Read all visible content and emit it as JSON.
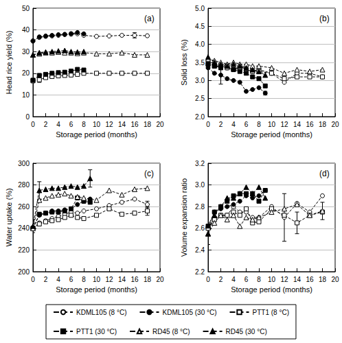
{
  "chart_data": [
    {
      "type": "line",
      "title": "(a)",
      "xlabel": "Storage period (months)",
      "ylabel": "Head rice yield (%)",
      "xlim": [
        0,
        20
      ],
      "xticks": [
        0,
        2,
        4,
        6,
        8,
        10,
        12,
        14,
        16,
        18,
        20
      ],
      "ylim": [
        0,
        50
      ],
      "yticks": [
        0,
        10,
        20,
        30,
        40,
        50
      ],
      "grid": true,
      "legend": "bottom",
      "series": [
        {
          "name": "KDML105 (8 °C)",
          "color": "#000000",
          "marker": "open_circle",
          "line_style": "dashed",
          "x": [
            0,
            1,
            2,
            3,
            4,
            5,
            6,
            7,
            8,
            10,
            12,
            14,
            16,
            18
          ],
          "values": [
            35,
            36.5,
            37,
            37.2,
            37.5,
            37.8,
            38,
            38.2,
            37.5,
            37,
            37.2,
            37.5,
            37.5,
            37.3
          ],
          "errors": [
            null,
            null,
            null,
            null,
            null,
            null,
            null,
            null,
            null,
            null,
            null,
            null,
            1.2,
            null
          ]
        },
        {
          "name": "KDML105 (30 °C)",
          "color": "#000000",
          "marker": "circle",
          "line_style": "dashed",
          "x": [
            0,
            1,
            2,
            3,
            4,
            5,
            6,
            7,
            8
          ],
          "values": [
            34.8,
            36.8,
            37.2,
            37.5,
            37.8,
            38,
            38.3,
            38.8,
            38.2
          ]
        },
        {
          "name": "PTT1 (8 °C)",
          "color": "#000000",
          "marker": "open_square",
          "line_style": "dashed",
          "x": [
            0,
            1,
            2,
            3,
            4,
            5,
            6,
            7,
            8,
            10,
            12,
            14,
            16,
            18
          ],
          "values": [
            16.5,
            17,
            18,
            18.5,
            18.8,
            19,
            19.2,
            19.5,
            20,
            20,
            20,
            20,
            20,
            20
          ],
          "errors": [
            null,
            1.2,
            null,
            null,
            null,
            null,
            null,
            null,
            null,
            null,
            null,
            null,
            null,
            null
          ]
        },
        {
          "name": "PTT1 (30 °C)",
          "color": "#000000",
          "marker": "square",
          "line_style": "dashed",
          "x": [
            0,
            1,
            2,
            3,
            4,
            5,
            6,
            7,
            8
          ],
          "values": [
            16.8,
            19,
            19.5,
            20,
            20.3,
            20.5,
            21,
            21.8,
            21.5
          ]
        },
        {
          "name": "RD45 (8 °C)",
          "color": "#000000",
          "marker": "open_triangle",
          "line_style": "dashed",
          "x": [
            0,
            1,
            2,
            3,
            4,
            5,
            6,
            7,
            8,
            10,
            12,
            14,
            16,
            18
          ],
          "values": [
            28.5,
            29,
            29.5,
            29.5,
            29.8,
            29.5,
            29.5,
            29.2,
            29.5,
            29,
            29,
            29.5,
            28.5,
            28.5
          ]
        },
        {
          "name": "RD45 (30 °C)",
          "color": "#000000",
          "marker": "triangle",
          "line_style": "dashed",
          "x": [
            0,
            1,
            2,
            3,
            4,
            5,
            6,
            7,
            8
          ],
          "values": [
            28.5,
            29.5,
            29.8,
            30,
            30.3,
            30.5,
            30,
            29.8,
            30
          ]
        }
      ]
    },
    {
      "type": "line",
      "title": "(b)",
      "xlabel": "Storage period (months)",
      "ylabel": "Solid loss (%)",
      "xlim": [
        0,
        20
      ],
      "xticks": [
        0,
        2,
        4,
        6,
        8,
        10,
        12,
        14,
        16,
        18,
        20
      ],
      "ylim": [
        2,
        5
      ],
      "yticks": [
        {
          "value": 2,
          "label": "2.0"
        },
        2.5,
        {
          "value": 3,
          "label": "3.0"
        },
        3.5,
        {
          "value": 4,
          "label": "4.0"
        },
        4.5,
        {
          "value": 5,
          "label": "5.0"
        }
      ],
      "grid": true,
      "series": [
        {
          "name": "KDML105 (8 °C)",
          "color": "#000000",
          "marker": "open_circle",
          "line_style": "dashed",
          "x": [
            0,
            1,
            2,
            3,
            4,
            5,
            6,
            7,
            8,
            10,
            12,
            14,
            16,
            18
          ],
          "values": [
            3.55,
            3.45,
            3.4,
            3.35,
            3.3,
            3.4,
            3.3,
            3.25,
            3.3,
            3.2,
            2.95,
            3.2,
            3.2,
            3.1
          ]
        },
        {
          "name": "KDML105 (30 °C)",
          "color": "#000000",
          "marker": "circle",
          "line_style": "dashed",
          "x": [
            0,
            1,
            2,
            3,
            4,
            5,
            6,
            7,
            8,
            9
          ],
          "values": [
            3.35,
            3.2,
            3.15,
            3.05,
            3.0,
            2.95,
            2.7,
            2.75,
            2.8,
            2.65
          ],
          "errors": [
            null,
            null,
            0.25,
            null,
            null,
            null,
            null,
            null,
            null,
            0.05
          ]
        },
        {
          "name": "PTT1 (8 °C)",
          "color": "#000000",
          "marker": "open_square",
          "line_style": "dashed",
          "x": [
            0,
            1,
            2,
            3,
            4,
            5,
            6,
            7,
            8,
            10,
            12,
            14,
            16,
            18
          ],
          "values": [
            3.45,
            3.4,
            3.4,
            3.35,
            3.3,
            3.35,
            3.3,
            3.25,
            3.25,
            3.2,
            3.05,
            3.1,
            3.1,
            3.1
          ]
        },
        {
          "name": "PTT1 (30 °C)",
          "color": "#000000",
          "marker": "square",
          "line_style": "dashed",
          "x": [
            0,
            1,
            2,
            3,
            4,
            5,
            6,
            7,
            8,
            9
          ],
          "values": [
            3.45,
            3.4,
            3.35,
            3.4,
            3.3,
            3.25,
            3.2,
            3.1,
            3.05,
            2.85
          ]
        },
        {
          "name": "RD45 (8 °C)",
          "color": "#000000",
          "marker": "open_triangle",
          "line_style": "dashed",
          "x": [
            0,
            1,
            2,
            3,
            4,
            5,
            6,
            7,
            8,
            10,
            12,
            14,
            16,
            18
          ],
          "values": [
            3.6,
            3.55,
            3.5,
            3.45,
            3.5,
            3.45,
            3.45,
            3.4,
            3.4,
            3.35,
            3.2,
            3.3,
            3.25,
            3.3
          ]
        },
        {
          "name": "RD45 (30 °C)",
          "color": "#000000",
          "marker": "triangle",
          "line_style": "dashed",
          "x": [
            0,
            1,
            2,
            3,
            4,
            5,
            6,
            7,
            8,
            9
          ],
          "values": [
            3.65,
            3.5,
            3.45,
            3.4,
            3.45,
            3.4,
            3.35,
            3.3,
            3.25,
            3.15
          ]
        }
      ]
    },
    {
      "type": "line",
      "title": "(c)",
      "xlabel": "Storage period (months)",
      "ylabel": "Water uptake (%)",
      "xlim": [
        0,
        20
      ],
      "xticks": [
        0,
        2,
        4,
        6,
        8,
        10,
        12,
        14,
        16,
        18,
        20
      ],
      "ylim": [
        200,
        300
      ],
      "yticks": [
        200,
        220,
        240,
        260,
        280,
        300
      ],
      "grid": true,
      "series": [
        {
          "name": "KDML105 (8 °C)",
          "color": "#000000",
          "marker": "open_circle",
          "line_style": "dashed",
          "x": [
            0,
            1,
            2,
            3,
            4,
            5,
            6,
            7,
            8,
            10,
            12,
            14,
            16,
            18
          ],
          "values": [
            240,
            245,
            247,
            249,
            251,
            253,
            255,
            254,
            256,
            258,
            261,
            264,
            267,
            262
          ],
          "errors": [
            null,
            null,
            null,
            null,
            null,
            null,
            null,
            null,
            null,
            null,
            null,
            null,
            null,
            3
          ]
        },
        {
          "name": "KDML105 (30 °C)",
          "color": "#000000",
          "marker": "circle",
          "line_style": "dashed",
          "x": [
            0,
            1,
            2,
            3,
            4,
            5,
            6,
            7,
            8,
            9
          ],
          "values": [
            240,
            252,
            254,
            256,
            256,
            257,
            258,
            262,
            265,
            267
          ]
        },
        {
          "name": "PTT1 (8 °C)",
          "color": "#000000",
          "marker": "open_square",
          "line_style": "dashed",
          "x": [
            0,
            1,
            2,
            3,
            4,
            5,
            6,
            7,
            8,
            10,
            12,
            14,
            16,
            18
          ],
          "values": [
            240,
            244,
            246,
            247,
            248,
            250,
            252,
            250,
            249,
            252,
            258,
            253,
            254,
            256
          ],
          "errors": [
            null,
            null,
            null,
            null,
            null,
            null,
            null,
            null,
            null,
            null,
            null,
            null,
            null,
            4
          ]
        },
        {
          "name": "PTT1 (30 °C)",
          "color": "#000000",
          "marker": "square",
          "line_style": "dashed",
          "x": [
            0,
            1,
            2,
            3,
            4,
            5,
            6,
            7,
            8,
            9
          ],
          "values": [
            240,
            253,
            254,
            255,
            255,
            256,
            258,
            268,
            265,
            264
          ]
        },
        {
          "name": "RD45 (8 °C)",
          "color": "#000000",
          "marker": "open_triangle",
          "line_style": "dashed",
          "x": [
            0,
            1,
            2,
            3,
            4,
            5,
            6,
            7,
            8,
            10,
            12,
            14,
            16,
            18
          ],
          "values": [
            240,
            266,
            268,
            270,
            271,
            272,
            270,
            269,
            268,
            266,
            275,
            271,
            276,
            277
          ]
        },
        {
          "name": "RD45 (30 °C)",
          "color": "#000000",
          "marker": "triangle",
          "line_style": "dashed",
          "x": [
            0,
            1,
            2,
            3,
            4,
            5,
            6,
            7,
            8,
            9
          ],
          "values": [
            242,
            275,
            276,
            277,
            277,
            278,
            279,
            278,
            279,
            286
          ],
          "errors": [
            6,
            8,
            null,
            null,
            null,
            null,
            null,
            null,
            null,
            8
          ]
        }
      ]
    },
    {
      "type": "line",
      "title": "(d)",
      "xlabel": "Storage period (months)",
      "ylabel": "Volume expansion ratio",
      "xlim": [
        0,
        20
      ],
      "xticks": [
        0,
        2,
        4,
        6,
        8,
        10,
        12,
        14,
        16,
        18,
        20
      ],
      "ylim": [
        2.2,
        3.2
      ],
      "yticks": [
        2.2,
        2.4,
        2.6,
        2.8,
        {
          "value": 3,
          "label": "3.0"
        },
        3.2
      ],
      "grid": true,
      "series": [
        {
          "name": "KDML105 (8 °C)",
          "color": "#000000",
          "marker": "open_circle",
          "line_style": "dashed",
          "x": [
            0,
            1,
            2,
            3,
            4,
            5,
            6,
            7,
            8,
            10,
            12,
            14,
            16,
            18
          ],
          "values": [
            2.6,
            2.7,
            2.72,
            2.72,
            2.8,
            2.75,
            2.75,
            2.7,
            2.7,
            2.8,
            2.7,
            2.83,
            2.75,
            2.9
          ],
          "errors": [
            null,
            null,
            null,
            null,
            null,
            null,
            null,
            null,
            null,
            null,
            0.22,
            null,
            null,
            null
          ]
        },
        {
          "name": "KDML105 (30 °C)",
          "color": "#000000",
          "marker": "circle",
          "line_style": "dashed",
          "x": [
            0,
            1,
            2,
            3,
            4,
            5,
            6,
            7,
            8,
            9
          ],
          "values": [
            2.6,
            2.75,
            2.78,
            2.8,
            2.82,
            2.85,
            2.9,
            2.88,
            2.9,
            2.95
          ]
        },
        {
          "name": "PTT1 (8 °C)",
          "color": "#000000",
          "marker": "open_square",
          "line_style": "dashed",
          "x": [
            0,
            1,
            2,
            3,
            4,
            5,
            6,
            7,
            8,
            10,
            12,
            14,
            16,
            18
          ],
          "values": [
            2.6,
            2.68,
            2.72,
            2.72,
            2.75,
            2.72,
            2.78,
            2.65,
            2.66,
            2.78,
            2.72,
            2.65,
            2.72,
            2.75
          ],
          "errors": [
            null,
            null,
            null,
            null,
            null,
            null,
            null,
            null,
            null,
            null,
            null,
            0.1,
            null,
            null
          ]
        },
        {
          "name": "PTT1 (30 °C)",
          "color": "#000000",
          "marker": "square",
          "line_style": "dashed",
          "x": [
            0,
            1,
            2,
            3,
            4,
            5,
            6,
            7,
            8,
            9
          ],
          "values": [
            2.62,
            2.75,
            2.8,
            2.85,
            2.9,
            2.92,
            2.92,
            2.92,
            2.85,
            2.95
          ]
        },
        {
          "name": "RD45 (8 °C)",
          "color": "#000000",
          "marker": "open_triangle",
          "line_style": "dashed",
          "x": [
            0,
            1,
            2,
            3,
            4,
            5,
            6,
            7,
            8,
            10,
            12,
            14,
            16,
            18
          ],
          "values": [
            2.55,
            2.65,
            2.72,
            2.68,
            2.72,
            2.62,
            2.7,
            2.68,
            2.7,
            2.75,
            2.78,
            2.82,
            2.72,
            2.76
          ],
          "errors": [
            null,
            null,
            null,
            null,
            null,
            null,
            null,
            null,
            null,
            null,
            null,
            null,
            null,
            0.08
          ]
        },
        {
          "name": "RD45 (30 °C)",
          "color": "#000000",
          "marker": "triangle",
          "line_style": "dashed",
          "x": [
            0,
            1,
            2,
            3,
            4,
            5,
            6,
            7,
            8,
            9
          ],
          "values": [
            2.55,
            2.72,
            2.8,
            2.88,
            2.88,
            2.92,
            2.98,
            2.92,
            2.98,
            2.88
          ],
          "errors": [
            0.1,
            null,
            null,
            null,
            null,
            null,
            null,
            null,
            null,
            null
          ]
        }
      ]
    }
  ]
}
